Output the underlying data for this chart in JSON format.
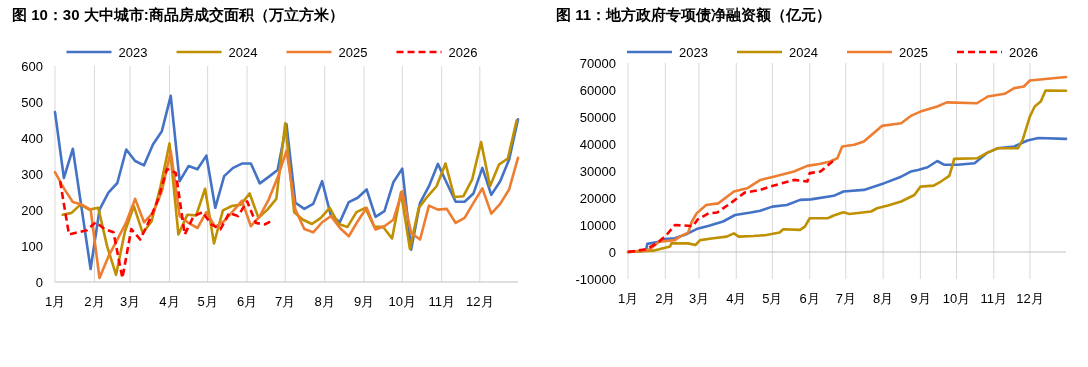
{
  "chart_data": [
    {
      "type": "line",
      "title": "图 10：30 大中城市:商品房成交面积（万立方米）",
      "legend": "top",
      "grid": "x",
      "xlim": [
        "--01-01",
        "--12-31"
      ],
      "xticks": [
        {
          "value": "--01-01",
          "label": "1月"
        },
        {
          "value": "--02-01",
          "label": "2月"
        },
        {
          "value": "--03-01",
          "label": "3月"
        },
        {
          "value": "--04-01",
          "label": "4月"
        },
        {
          "value": "--05-01",
          "label": "5月"
        },
        {
          "value": "--06-01",
          "label": "6月"
        },
        {
          "value": "--07-01",
          "label": "7月"
        },
        {
          "value": "--08-01",
          "label": "8月"
        },
        {
          "value": "--09-01",
          "label": "9月"
        },
        {
          "value": "--10-01",
          "label": "10月"
        },
        {
          "value": "--11-01",
          "label": "11月"
        },
        {
          "value": "--12-01",
          "label": "12月"
        }
      ],
      "ylim": [
        0,
        600
      ],
      "yticks": [
        0,
        100,
        200,
        300,
        400,
        500,
        600
      ],
      "series": [
        {
          "name": "2023",
          "color": "#4472c4",
          "x": [
            "--01-01",
            "--01-08",
            "--01-15",
            "--01-22",
            "--01-29",
            "--02-05",
            "--02-12",
            "--02-19",
            "--02-26",
            "--03-05",
            "--03-12",
            "--03-19",
            "--03-26",
            "--04-02",
            "--04-09",
            "--04-16",
            "--04-23",
            "--04-30",
            "--05-07",
            "--05-14",
            "--05-21",
            "--05-28",
            "--06-04",
            "--06-11",
            "--06-18",
            "--06-25",
            "--07-02",
            "--07-09",
            "--07-16",
            "--07-23",
            "--07-30",
            "--08-06",
            "--08-13",
            "--08-20",
            "--08-27",
            "--09-03",
            "--09-10",
            "--09-17",
            "--09-24",
            "--10-01",
            "--10-08",
            "--10-15",
            "--10-22",
            "--10-29",
            "--11-05",
            "--11-12",
            "--11-19",
            "--11-26",
            "--12-03",
            "--12-10",
            "--12-17",
            "--12-24",
            "--12-31"
          ],
          "values": [
            472,
            289,
            370,
            203,
            36,
            201,
            248,
            275,
            368,
            336,
            324,
            382,
            419,
            517,
            280,
            322,
            313,
            351,
            206,
            294,
            317,
            329,
            329,
            274,
            292,
            311,
            438,
            220,
            203,
            217,
            280,
            183,
            167,
            222,
            234,
            257,
            181,
            197,
            277,
            315,
            90,
            220,
            266,
            328,
            275,
            223,
            223,
            246,
            317,
            242,
            280,
            340,
            452
          ]
        },
        {
          "name": "2024",
          "color": "#bf9000",
          "x": [
            "--01-07",
            "--01-14",
            "--01-21",
            "--01-28",
            "--02-04",
            "--02-11",
            "--02-18",
            "--02-25",
            "--03-04",
            "--03-11",
            "--03-18",
            "--03-25",
            "--04-01",
            "--04-08",
            "--04-15",
            "--04-22",
            "--04-29",
            "--05-06",
            "--05-13",
            "--05-20",
            "--05-27",
            "--06-03",
            "--06-10",
            "--06-17",
            "--06-24",
            "--07-01",
            "--07-08",
            "--07-15",
            "--07-22",
            "--07-29",
            "--08-05",
            "--08-12",
            "--08-19",
            "--08-26",
            "--09-02",
            "--09-09",
            "--09-16",
            "--09-23",
            "--09-30",
            "--10-07",
            "--10-14",
            "--10-21",
            "--10-28",
            "--11-04",
            "--11-11",
            "--11-18",
            "--11-25",
            "--12-02",
            "--12-09",
            "--12-16",
            "--12-23",
            "--12-30"
          ],
          "values": [
            187,
            192,
            215,
            201,
            206,
            99,
            20,
            141,
            211,
            136,
            169,
            266,
            385,
            132,
            187,
            185,
            259,
            107,
            199,
            211,
            215,
            246,
            178,
            201,
            231,
            441,
            194,
            173,
            161,
            178,
            206,
            161,
            153,
            194,
            206,
            153,
            153,
            121,
            249,
            92,
            206,
            238,
            266,
            329,
            236,
            238,
            285,
            389,
            266,
            326,
            343,
            449
          ]
        },
        {
          "name": "2025",
          "color": "#ed7d31",
          "x": [
            "--01-01",
            "--01-08",
            "--01-15",
            "--01-22",
            "--01-29",
            "--02-05",
            "--02-12",
            "--02-19",
            "--02-26",
            "--03-05",
            "--03-12",
            "--03-19",
            "--03-26",
            "--04-02",
            "--04-09",
            "--04-16",
            "--04-23",
            "--04-30",
            "--05-07",
            "--05-14",
            "--05-21",
            "--05-28",
            "--06-04",
            "--06-11",
            "--06-18",
            "--06-25",
            "--07-02",
            "--07-09",
            "--07-16",
            "--07-23",
            "--07-30",
            "--08-06",
            "--08-13",
            "--08-20",
            "--08-27",
            "--09-03",
            "--09-10",
            "--09-17",
            "--09-24",
            "--10-01",
            "--10-08",
            "--10-15",
            "--10-22",
            "--10-29",
            "--11-05",
            "--11-12",
            "--11-19",
            "--11-26",
            "--12-03",
            "--12-10",
            "--12-17",
            "--12-24",
            "--12-31"
          ],
          "values": [
            305,
            260,
            222,
            215,
            201,
            11,
            71,
            118,
            166,
            231,
            166,
            192,
            252,
            364,
            183,
            164,
            150,
            194,
            153,
            169,
            197,
            226,
            155,
            183,
            229,
            290,
            365,
            201,
            147,
            138,
            166,
            183,
            150,
            127,
            169,
            206,
            146,
            155,
            173,
            252,
            136,
            118,
            212,
            201,
            203,
            164,
            178,
            220,
            260,
            190,
            217,
            257,
            345
          ]
        },
        {
          "name": "2026",
          "color": "#ff0000",
          "line_style": "dashed",
          "x": [
            "--01-05",
            "--01-12",
            "--01-19",
            "--01-26",
            "--02-02",
            "--02-09",
            "--02-16",
            "--02-23",
            "--03-02",
            "--03-09",
            "--03-16",
            "--03-23",
            "--03-30",
            "--04-06",
            "--04-13",
            "--04-20",
            "--04-27",
            "--05-04",
            "--05-11",
            "--05-18",
            "--05-25",
            "--06-01",
            "--06-08",
            "--06-15",
            "--06-22"
          ],
          "values": [
            280,
            132,
            138,
            144,
            166,
            147,
            138,
            11,
            147,
            118,
            169,
            229,
            314,
            303,
            132,
            183,
            194,
            160,
            146,
            192,
            183,
            224,
            164,
            160,
            173
          ]
        }
      ]
    },
    {
      "type": "line",
      "title": "图 11：地方政府专项债净融资额（亿元）",
      "legend": "top",
      "grid": "x",
      "xlim": [
        "--01-01",
        "--12-31"
      ],
      "xticks": [
        {
          "value": "--01-01",
          "label": "1月"
        },
        {
          "value": "--02-01",
          "label": "2月"
        },
        {
          "value": "--03-01",
          "label": "3月"
        },
        {
          "value": "--04-01",
          "label": "4月"
        },
        {
          "value": "--05-01",
          "label": "5月"
        },
        {
          "value": "--06-01",
          "label": "6月"
        },
        {
          "value": "--07-01",
          "label": "7月"
        },
        {
          "value": "--08-01",
          "label": "8月"
        },
        {
          "value": "--09-01",
          "label": "9月"
        },
        {
          "value": "--10-01",
          "label": "10月"
        },
        {
          "value": "--11-01",
          "label": "11月"
        },
        {
          "value": "--12-01",
          "label": "12月"
        }
      ],
      "ylim": [
        -10000,
        70000
      ],
      "yticks": [
        -10000,
        0,
        10000,
        20000,
        30000,
        40000,
        50000,
        60000,
        70000
      ],
      "series": [
        {
          "name": "2023",
          "color": "#4472c4",
          "x": [
            "--01-01",
            "--01-16",
            "--01-17",
            "--01-27",
            "--02-01",
            "--02-09",
            "--02-19",
            "--02-27",
            "--03-10",
            "--03-21",
            "--03-31",
            "--04-13",
            "--04-21",
            "--05-01",
            "--05-13",
            "--05-24",
            "--06-02",
            "--06-21",
            "--06-29",
            "--07-16",
            "--08-02",
            "--08-16",
            "--08-24",
            "--08-30",
            "--09-07",
            "--09-15",
            "--09-21",
            "--10-02",
            "--10-16",
            "--10-26",
            "--11-04",
            "--11-18",
            "--11-29",
            "--12-08",
            "--12-31"
          ],
          "values": [
            0,
            500,
            3000,
            3800,
            4800,
            5100,
            6700,
            8500,
            9800,
            11300,
            13700,
            14600,
            15300,
            16800,
            17400,
            19300,
            19500,
            20800,
            22400,
            23000,
            25500,
            27900,
            29800,
            30400,
            31400,
            33700,
            32300,
            32300,
            32900,
            36600,
            38400,
            39100,
            41300,
            42200,
            41900
          ]
        },
        {
          "name": "2024",
          "color": "#bf9000",
          "x": [
            "--01-01",
            "--01-22",
            "--02-05",
            "--02-06",
            "--02-20",
            "--02-26",
            "--03-02",
            "--03-13",
            "--03-24",
            "--03-30",
            "--04-03",
            "--04-15",
            "--04-26",
            "--05-07",
            "--05-10",
            "--05-24",
            "--05-28",
            "--06-01",
            "--06-08",
            "--06-16",
            "--06-21",
            "--06-29",
            "--07-04",
            "--07-22",
            "--07-27",
            "--08-05",
            "--08-16",
            "--08-27",
            "--09-01",
            "--09-12",
            "--09-18",
            "--09-25",
            "--09-28",
            "--09-29",
            "--10-18",
            "--10-26",
            "--11-04",
            "--11-21",
            "--11-25",
            "--12-01",
            "--12-05",
            "--12-10",
            "--12-14",
            "--12-31"
          ],
          "values": [
            0,
            500,
            2000,
            3200,
            3200,
            2600,
            4400,
            5100,
            5700,
            6900,
            5700,
            5900,
            6300,
            7200,
            8400,
            8200,
            9400,
            12500,
            12500,
            12500,
            13500,
            14700,
            14100,
            15000,
            16200,
            17200,
            18700,
            21100,
            24200,
            24600,
            26100,
            28200,
            32600,
            34500,
            34700,
            36600,
            38400,
            38400,
            41500,
            50200,
            53900,
            55700,
            59800,
            59700
          ]
        },
        {
          "name": "2025",
          "color": "#ed7d31",
          "x": [
            "--01-01",
            "--01-18",
            "--01-27",
            "--02-09",
            "--02-13",
            "--02-20",
            "--02-23",
            "--02-27",
            "--03-07",
            "--03-17",
            "--03-30",
            "--04-10",
            "--04-21",
            "--05-02",
            "--05-19",
            "--05-30",
            "--06-09",
            "--06-18",
            "--06-24",
            "--06-28",
            "--07-08",
            "--07-16",
            "--07-24",
            "--07-31",
            "--08-16",
            "--08-24",
            "--09-01",
            "--09-15",
            "--09-23",
            "--10-18",
            "--10-27",
            "--11-10",
            "--11-18",
            "--11-26",
            "--12-01",
            "--12-31"
          ],
          "values": [
            0,
            700,
            3800,
            4400,
            5700,
            7200,
            11200,
            14300,
            17400,
            18000,
            22400,
            23600,
            26700,
            27900,
            29800,
            31900,
            32600,
            33500,
            34700,
            39100,
            39700,
            40900,
            44000,
            46700,
            47700,
            50400,
            52000,
            53900,
            55400,
            55100,
            57600,
            58600,
            60700,
            61300,
            63500,
            64800
          ]
        },
        {
          "name": "2026",
          "color": "#ff0000",
          "line_style": "dashed",
          "x": [
            "--01-01",
            "--01-16",
            "--01-25",
            "--02-02",
            "--02-09",
            "--02-24",
            "--02-28",
            "--03-09",
            "--03-16",
            "--03-27",
            "--04-08",
            "--04-21",
            "--04-29",
            "--05-19",
            "--05-30",
            "--06-01",
            "--06-10",
            "--06-21"
          ],
          "values": [
            0,
            1000,
            3200,
            6300,
            10000,
            9600,
            12100,
            14300,
            14600,
            18000,
            22000,
            23000,
            24200,
            26700,
            26100,
            29200,
            29800,
            33900
          ]
        }
      ]
    }
  ]
}
